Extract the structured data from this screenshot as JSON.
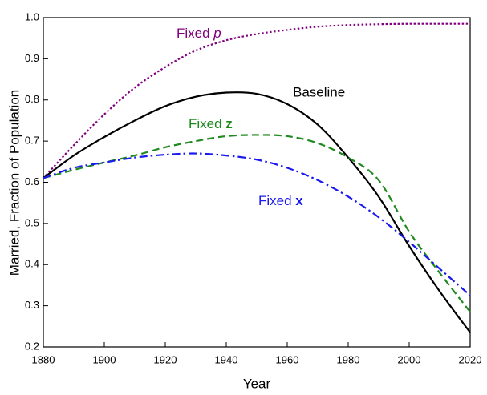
{
  "chart_data": {
    "type": "line",
    "x_label": "Year",
    "y_label": "Married, Fraction of Population",
    "x": [
      1880,
      1890,
      1900,
      1910,
      1920,
      1930,
      1940,
      1950,
      1960,
      1970,
      1980,
      1990,
      2000,
      2010,
      2020
    ],
    "series": [
      {
        "name": "Fixed p",
        "color": "#800080",
        "dash": "dotted",
        "emphasis": "italic",
        "values": [
          0.61,
          0.69,
          0.765,
          0.83,
          0.88,
          0.92,
          0.945,
          0.96,
          0.97,
          0.978,
          0.982,
          0.984,
          0.985,
          0.985,
          0.985
        ]
      },
      {
        "name": "Baseline",
        "color": "#000000",
        "dash": "solid",
        "values": [
          0.61,
          0.665,
          0.71,
          0.75,
          0.785,
          0.808,
          0.818,
          0.815,
          0.79,
          0.74,
          0.66,
          0.565,
          0.445,
          0.335,
          0.235
        ]
      },
      {
        "name": "Fixed z",
        "color": "#1f8a1f",
        "dash": "dashed",
        "emphasis": "bold",
        "values": [
          0.61,
          0.63,
          0.648,
          0.665,
          0.685,
          0.7,
          0.712,
          0.715,
          0.712,
          0.695,
          0.66,
          0.605,
          0.48,
          0.38,
          0.285
        ]
      },
      {
        "name": "Fixed x",
        "color": "#1a1aee",
        "dash": "dashdot",
        "emphasis": "bold",
        "values": [
          0.61,
          0.635,
          0.648,
          0.66,
          0.667,
          0.67,
          0.665,
          0.655,
          0.635,
          0.605,
          0.565,
          0.515,
          0.455,
          0.39,
          0.325
        ]
      }
    ],
    "xlim": [
      1880,
      2020
    ],
    "xticks": [
      1880,
      1900,
      1920,
      1940,
      1960,
      1980,
      2000,
      2020
    ],
    "ylim": [
      0.2,
      1.0
    ],
    "yticks": [
      0.2,
      0.3,
      0.4,
      0.5,
      0.6,
      0.7,
      0.8,
      0.9,
      {
        "value": 1.0,
        "label": "1.0"
      }
    ],
    "grid": false
  }
}
